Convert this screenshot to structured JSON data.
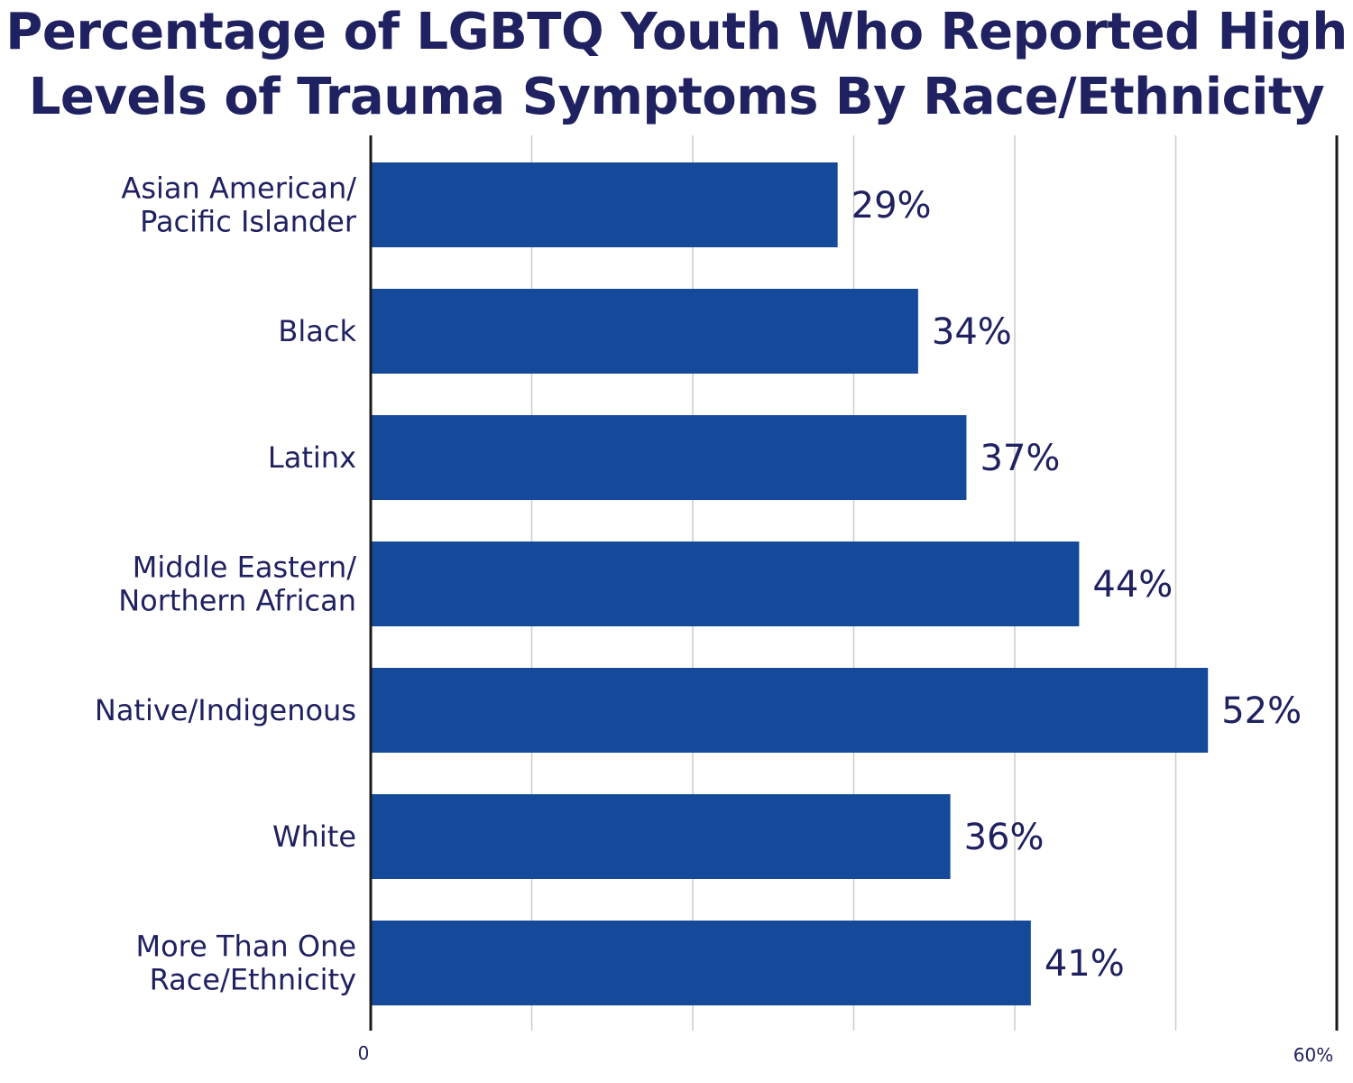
{
  "chart_data": {
    "type": "bar",
    "orientation": "horizontal",
    "title_lines": [
      "Percentage of LGBTQ Youth Who Reported High",
      "Levels of Trauma Symptoms By Race/Ethnicity"
    ],
    "categories": [
      [
        "Asian American/",
        "Pacific Islander"
      ],
      [
        "Black"
      ],
      [
        "Latinx"
      ],
      [
        "Middle Eastern/",
        "Northern African"
      ],
      [
        "Native/Indigenous"
      ],
      [
        "White"
      ],
      [
        "More Than One",
        "Race/Ethnicity"
      ]
    ],
    "values": [
      29,
      34,
      37,
      44,
      52,
      36,
      41
    ],
    "value_labels": [
      "29%",
      "34%",
      "37%",
      "44%",
      "52%",
      "36%",
      "41%"
    ],
    "xlim": [
      0,
      60
    ],
    "x_ticks": [
      0,
      10,
      20,
      30,
      40,
      50,
      60
    ],
    "x_tick_labels": {
      "min": "0",
      "max": "60%"
    },
    "grid": true,
    "colors": {
      "bar": "#154a9b",
      "text": "#1f2160",
      "grid": "#cccccc",
      "axis": "#1a1a1a"
    }
  }
}
